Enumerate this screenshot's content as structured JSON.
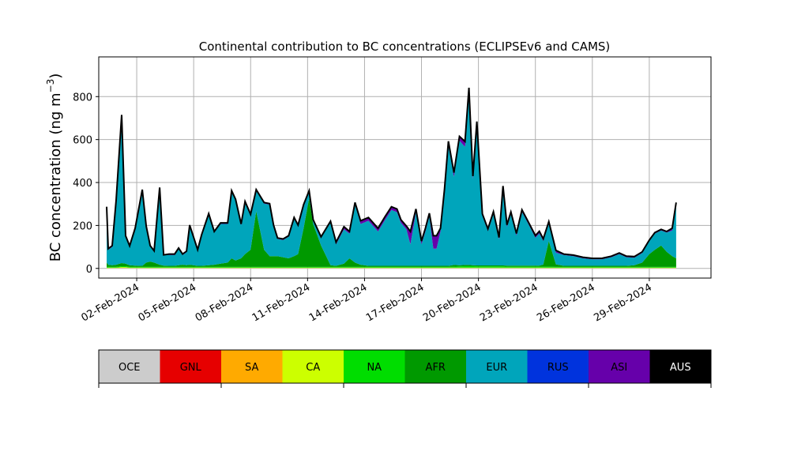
{
  "chart_data": {
    "type": "area",
    "stacked": true,
    "title": "Continental contribution to BC concentrations (ECLIPSEv6 and CAMS)",
    "xlabel": "",
    "ylabel": "BC concentration (ng m",
    "ylabel_superscript": "−3",
    "ylabel_close": ")",
    "ylim": [
      -45,
      985
    ],
    "xlim": [
      "2024-01-31T00:00",
      "2024-03-03T06:00"
    ],
    "y_ticks": [
      0,
      200,
      400,
      600,
      800
    ],
    "x_tick_labels": [
      "02-Feb-2024",
      "05-Feb-2024",
      "08-Feb-2024",
      "11-Feb-2024",
      "14-Feb-2024",
      "17-Feb-2024",
      "20-Feb-2024",
      "23-Feb-2024",
      "26-Feb-2024",
      "29-Feb-2024"
    ],
    "x_tick_dates": [
      "2024-02-02",
      "2024-02-05",
      "2024-02-08",
      "2024-02-11",
      "2024-02-14",
      "2024-02-17",
      "2024-02-20",
      "2024-02-23",
      "2024-02-26",
      "2024-02-29"
    ],
    "grid": true,
    "legend": "colorbar-below",
    "x": [
      "2024-01-31T10:00",
      "2024-01-31T12:00",
      "2024-01-31T17:00",
      "2024-01-31T22:00",
      "2024-02-01T05:00",
      "2024-02-01T10:00",
      "2024-02-01T15:00",
      "2024-02-01T22:00",
      "2024-02-02T07:00",
      "2024-02-02T12:00",
      "2024-02-02T17:00",
      "2024-02-02T22:00",
      "2024-02-03T05:00",
      "2024-02-03T10:00",
      "2024-02-03T17:00",
      "2024-02-04T00:00",
      "2024-02-04T05:00",
      "2024-02-04T10:00",
      "2024-02-04T15:00",
      "2024-02-04T19:00",
      "2024-02-05T05:00",
      "2024-02-05T10:00",
      "2024-02-05T19:00",
      "2024-02-06T02:00",
      "2024-02-06T10:00",
      "2024-02-06T19:00",
      "2024-02-07T00:00",
      "2024-02-07T05:00",
      "2024-02-07T12:00",
      "2024-02-07T17:00",
      "2024-02-08T00:00",
      "2024-02-08T07:00",
      "2024-02-08T17:00",
      "2024-02-09T00:00",
      "2024-02-09T05:00",
      "2024-02-09T10:00",
      "2024-02-09T17:00",
      "2024-02-10T00:00",
      "2024-02-10T07:00",
      "2024-02-10T12:00",
      "2024-02-10T19:00",
      "2024-02-11T02:00",
      "2024-02-11T07:00",
      "2024-02-11T17:00",
      "2024-02-12T05:00",
      "2024-02-12T12:00",
      "2024-02-12T22:00",
      "2024-02-13T05:00",
      "2024-02-13T12:00",
      "2024-02-13T19:00",
      "2024-02-14T05:00",
      "2024-02-14T17:00",
      "2024-02-15T02:00",
      "2024-02-15T10:00",
      "2024-02-15T17:00",
      "2024-02-15T22:00",
      "2024-02-16T05:00",
      "2024-02-16T10:00",
      "2024-02-16T17:00",
      "2024-02-17T00:00",
      "2024-02-17T05:00",
      "2024-02-17T10:00",
      "2024-02-17T15:00",
      "2024-02-17T19:00",
      "2024-02-18T00:00",
      "2024-02-18T05:00",
      "2024-02-18T10:00",
      "2024-02-18T17:00",
      "2024-02-19T00:00",
      "2024-02-19T07:00",
      "2024-02-19T12:00",
      "2024-02-19T17:00",
      "2024-02-19T22:00",
      "2024-02-20T05:00",
      "2024-02-20T12:00",
      "2024-02-20T19:00",
      "2024-02-21T02:00",
      "2024-02-21T07:00",
      "2024-02-21T12:00",
      "2024-02-21T17:00",
      "2024-02-22T00:00",
      "2024-02-22T07:00",
      "2024-02-22T17:00",
      "2024-02-23T00:00",
      "2024-02-23T05:00",
      "2024-02-23T10:00",
      "2024-02-23T17:00",
      "2024-02-24T02:00",
      "2024-02-24T12:00",
      "2024-02-25T00:00",
      "2024-02-25T12:00",
      "2024-02-26T00:00",
      "2024-02-26T12:00",
      "2024-02-27T00:00",
      "2024-02-27T10:00",
      "2024-02-27T19:00",
      "2024-02-28T05:00",
      "2024-02-28T15:00",
      "2024-02-29T00:00",
      "2024-02-29T07:00",
      "2024-02-29T15:00",
      "2024-02-29T22:00",
      "2024-03-01T05:00",
      "2024-03-01T10:00"
    ],
    "series": [
      {
        "name": "OCE",
        "color": "#cccccc",
        "values": [
          1,
          1,
          1,
          1,
          2,
          2,
          1,
          1,
          1,
          1,
          1,
          1,
          1,
          1,
          1,
          1,
          1,
          1,
          1,
          1,
          1,
          1,
          1,
          1,
          1,
          1,
          1,
          1,
          1,
          1,
          1,
          1,
          1,
          1,
          1,
          1,
          1,
          1,
          1,
          1,
          1,
          1,
          1,
          1,
          1,
          1,
          1,
          1,
          1,
          1,
          1,
          1,
          1,
          1,
          1,
          1,
          1,
          1,
          1,
          1,
          1,
          1,
          1,
          1,
          1,
          1,
          1,
          1,
          1,
          1,
          1,
          1,
          1,
          1,
          1,
          1,
          1,
          1,
          1,
          1,
          1,
          1,
          1,
          1,
          1,
          1,
          1,
          1,
          1,
          1,
          1,
          1,
          1,
          1,
          1,
          1,
          1,
          1,
          1,
          1,
          1,
          1,
          1,
          1
        ]
      },
      {
        "name": "GNL",
        "color": "#e60000",
        "values": [
          0,
          0,
          0,
          0,
          0,
          0,
          0,
          0,
          0,
          0,
          0,
          0,
          0,
          0,
          0,
          0,
          0,
          0,
          0,
          0,
          0,
          0,
          0,
          0,
          0,
          0,
          0,
          0,
          0,
          0,
          0,
          0,
          0,
          0,
          0,
          0,
          0,
          0,
          0,
          0,
          0,
          0,
          0,
          0,
          0,
          0,
          0,
          0,
          0,
          0,
          0,
          0,
          0,
          0,
          0,
          0,
          0,
          0,
          0,
          0,
          0,
          0,
          0,
          0,
          0,
          0,
          0,
          0,
          0,
          0,
          0,
          0,
          0,
          0,
          0,
          0,
          0,
          0,
          0,
          0,
          0,
          0,
          0,
          0,
          0,
          0,
          0,
          0,
          0,
          0,
          0,
          0,
          0,
          0,
          0,
          0,
          0,
          0,
          0,
          0,
          0,
          0,
          0,
          0
        ]
      },
      {
        "name": "SA",
        "color": "#ffaa00",
        "values": [
          1,
          1,
          1,
          1,
          1,
          1,
          1,
          1,
          1,
          1,
          1,
          1,
          1,
          1,
          1,
          1,
          1,
          1,
          1,
          1,
          1,
          1,
          1,
          1,
          1,
          1,
          1,
          1,
          1,
          1,
          1,
          1,
          1,
          1,
          1,
          1,
          1,
          1,
          1,
          1,
          1,
          1,
          1,
          1,
          1,
          1,
          1,
          1,
          1,
          1,
          1,
          1,
          1,
          1,
          1,
          1,
          1,
          1,
          1,
          1,
          1,
          1,
          1,
          1,
          1,
          1,
          1,
          1,
          1,
          1,
          1,
          1,
          1,
          1,
          1,
          1,
          1,
          1,
          1,
          1,
          1,
          1,
          1,
          1,
          1,
          1,
          1,
          1,
          1,
          1,
          1,
          1,
          1,
          1,
          1,
          1,
          1,
          1,
          1,
          1,
          1,
          1,
          1,
          1
        ]
      },
      {
        "name": "CA",
        "color": "#ccff00",
        "values": [
          2,
          2,
          2,
          2,
          3,
          3,
          2,
          2,
          2,
          2,
          2,
          2,
          2,
          2,
          2,
          2,
          2,
          2,
          2,
          2,
          2,
          2,
          2,
          2,
          2,
          2,
          2,
          2,
          2,
          2,
          2,
          2,
          2,
          2,
          2,
          2,
          2,
          2,
          2,
          2,
          2,
          2,
          2,
          2,
          2,
          2,
          2,
          2,
          2,
          2,
          2,
          2,
          2,
          2,
          2,
          2,
          2,
          2,
          2,
          2,
          2,
          2,
          2,
          2,
          2,
          2,
          2,
          2,
          2,
          2,
          2,
          2,
          2,
          2,
          2,
          2,
          2,
          2,
          2,
          2,
          2,
          2,
          2,
          2,
          2,
          2,
          2,
          2,
          2,
          2,
          2,
          2,
          2,
          2,
          2,
          2,
          2,
          2,
          2,
          2,
          2,
          2,
          2,
          2
        ]
      },
      {
        "name": "NA",
        "color": "#00dd00",
        "values": [
          3,
          3,
          3,
          3,
          4,
          4,
          3,
          3,
          3,
          3,
          3,
          3,
          3,
          3,
          3,
          3,
          3,
          3,
          3,
          3,
          3,
          3,
          3,
          3,
          3,
          3,
          3,
          3,
          3,
          3,
          3,
          3,
          3,
          3,
          3,
          3,
          3,
          3,
          3,
          3,
          3,
          3,
          3,
          3,
          3,
          3,
          3,
          3,
          3,
          3,
          3,
          3,
          3,
          3,
          3,
          3,
          3,
          3,
          3,
          3,
          3,
          3,
          3,
          3,
          3,
          3,
          3,
          4,
          5,
          6,
          6,
          6,
          5,
          5,
          5,
          5,
          5,
          5,
          4,
          4,
          4,
          4,
          4,
          4,
          4,
          4,
          4,
          3,
          3,
          3,
          3,
          3,
          3,
          3,
          3,
          3,
          3,
          3,
          3,
          3,
          3,
          3,
          3,
          3
        ]
      },
      {
        "name": "AFR",
        "color": "#009900",
        "values": [
          20,
          10,
          8,
          10,
          15,
          12,
          8,
          6,
          5,
          20,
          25,
          20,
          10,
          6,
          5,
          5,
          8,
          10,
          8,
          10,
          5,
          5,
          8,
          10,
          15,
          20,
          40,
          30,
          40,
          60,
          80,
          260,
          80,
          50,
          50,
          50,
          45,
          40,
          50,
          60,
          180,
          320,
          200,
          100,
          8,
          5,
          15,
          40,
          20,
          10,
          5,
          5,
          5,
          5,
          5,
          5,
          5,
          5,
          5,
          5,
          5,
          5,
          5,
          5,
          5,
          5,
          5,
          8,
          6,
          6,
          6,
          5,
          5,
          5,
          5,
          5,
          5,
          5,
          5,
          5,
          5,
          5,
          5,
          5,
          5,
          10,
          120,
          12,
          5,
          5,
          5,
          5,
          5,
          5,
          5,
          5,
          8,
          20,
          60,
          80,
          100,
          70,
          50,
          40
        ]
      },
      {
        "name": "EUR",
        "color": "#00a5bb",
        "values": [
          260,
          70,
          85,
          300,
          690,
          130,
          85,
          175,
          355,
          170,
          70,
          50,
          360,
          50,
          50,
          50,
          75,
          45,
          60,
          180,
          70,
          140,
          235,
          150,
          185,
          180,
          310,
          280,
          155,
          240,
          160,
          95,
          215,
          240,
          140,
          80,
          80,
          100,
          175,
          130,
          105,
          30,
          15,
          35,
          200,
          100,
          160,
          115,
          270,
          190,
          210,
          160,
          215,
          260,
          250,
          200,
          170,
          100,
          250,
          100,
          160,
          230,
          80,
          80,
          160,
          340,
          560,
          410,
          580,
          550,
          800,
          400,
          660,
          230,
          160,
          240,
          120,
          360,
          180,
          240,
          140,
          250,
          180,
          130,
          150,
          110,
          80,
          55,
          50,
          45,
          35,
          30,
          30,
          40,
          55,
          40,
          35,
          45,
          60,
          75,
          70,
          90,
          120,
          250
        ]
      },
      {
        "name": "RUS",
        "color": "#0033dd",
        "values": [
          0,
          0,
          0,
          0,
          0,
          0,
          0,
          0,
          0,
          0,
          0,
          0,
          0,
          0,
          0,
          0,
          0,
          0,
          0,
          0,
          0,
          0,
          0,
          0,
          0,
          0,
          0,
          0,
          0,
          0,
          0,
          0,
          0,
          0,
          0,
          0,
          0,
          0,
          0,
          0,
          0,
          0,
          0,
          0,
          0,
          0,
          0,
          0,
          0,
          0,
          0,
          0,
          0,
          0,
          0,
          0,
          0,
          0,
          0,
          0,
          0,
          0,
          0,
          0,
          0,
          0,
          0,
          0,
          0,
          0,
          0,
          0,
          0,
          0,
          0,
          0,
          0,
          0,
          0,
          0,
          0,
          0,
          0,
          0,
          0,
          0,
          0,
          0,
          0,
          0,
          0,
          0,
          0,
          0,
          0,
          0,
          0,
          0,
          0,
          0,
          0,
          0,
          0,
          0
        ]
      },
      {
        "name": "ASI",
        "color": "#6600aa",
        "values": [
          0,
          5,
          6,
          0,
          0,
          0,
          5,
          0,
          0,
          0,
          4,
          5,
          0,
          0,
          5,
          5,
          5,
          5,
          5,
          5,
          5,
          5,
          5,
          5,
          5,
          5,
          5,
          5,
          5,
          5,
          5,
          5,
          5,
          5,
          5,
          5,
          5,
          5,
          5,
          5,
          5,
          5,
          5,
          5,
          5,
          10,
          12,
          10,
          10,
          15,
          15,
          15,
          15,
          15,
          15,
          15,
          15,
          60,
          15,
          15,
          15,
          15,
          60,
          60,
          15,
          15,
          20,
          20,
          20,
          25,
          25,
          15,
          10,
          10,
          10,
          10,
          10,
          10,
          10,
          10,
          10,
          10,
          10,
          10,
          10,
          10,
          10,
          10,
          5,
          5,
          5,
          5,
          5,
          5,
          5,
          5,
          5,
          5,
          5,
          5,
          5,
          5,
          10,
          10
        ]
      },
      {
        "name": "AUS",
        "color": "#000000",
        "values": [
          0,
          0,
          0,
          0,
          0,
          0,
          0,
          0,
          0,
          0,
          0,
          0,
          0,
          0,
          0,
          0,
          0,
          0,
          0,
          0,
          0,
          0,
          0,
          0,
          0,
          0,
          0,
          0,
          0,
          0,
          0,
          0,
          0,
          0,
          0,
          0,
          0,
          0,
          0,
          0,
          0,
          0,
          0,
          0,
          0,
          0,
          0,
          0,
          0,
          0,
          0,
          0,
          0,
          0,
          0,
          0,
          0,
          0,
          0,
          0,
          0,
          0,
          0,
          0,
          0,
          0,
          0,
          0,
          0,
          0,
          0,
          0,
          0,
          0,
          0,
          0,
          0,
          0,
          0,
          0,
          0,
          0,
          0,
          0,
          0,
          0,
          0,
          0,
          0,
          0,
          0,
          0,
          0,
          0,
          0,
          0,
          0,
          0,
          0,
          0,
          0,
          0,
          0,
          0
        ]
      }
    ]
  }
}
